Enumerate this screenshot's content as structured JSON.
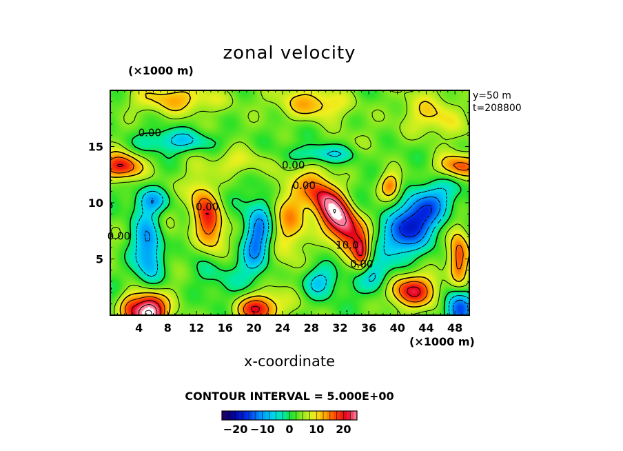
{
  "chart_data": {
    "type": "heatmap",
    "title": "zonal velocity",
    "xlabel": "x-coordinate",
    "x_unit": "(×1000 m)",
    "y_unit": "(×1000 m)",
    "xlim": [
      0,
      50
    ],
    "ylim": [
      0,
      20
    ],
    "x_ticks": [
      4,
      8,
      12,
      16,
      20,
      24,
      28,
      32,
      36,
      40,
      44,
      48
    ],
    "y_ticks": [
      5,
      10,
      15
    ],
    "annotations": [
      "y=50 m",
      "t=208800"
    ],
    "contour_interval_label": "CONTOUR INTERVAL = 5.000E+00",
    "contour_labels": [
      {
        "text": "0.00",
        "x": 5.5,
        "y": 16.2
      },
      {
        "text": "0.00",
        "x": 25.5,
        "y": 13.3
      },
      {
        "text": "0.00",
        "x": 27,
        "y": 11.5
      },
      {
        "text": "0.00",
        "x": 13.5,
        "y": 9.6
      },
      {
        "text": "0.00",
        "x": 1.2,
        "y": 7
      },
      {
        "text": "10.0",
        "x": 33,
        "y": 6.2
      },
      {
        "text": "0.00",
        "x": 35,
        "y": 4.5
      }
    ],
    "colorbar": {
      "min": -25,
      "max": 25,
      "ticks": [
        -20,
        -10,
        0,
        10,
        20
      ]
    },
    "features": [
      {
        "type": "max",
        "x": 31.5,
        "y": 9.0,
        "amp": 26,
        "sx": 3.2,
        "sy": 1.3,
        "angle_deg": -38
      },
      {
        "type": "max",
        "x": 5.3,
        "y": 0.2,
        "amp": 30,
        "sx": 1.6,
        "sy": 1.2,
        "angle_deg": 0
      },
      {
        "type": "max",
        "x": 20.5,
        "y": 0.6,
        "amp": 18,
        "sx": 2.0,
        "sy": 0.9,
        "angle_deg": 0
      },
      {
        "type": "max",
        "x": 13.5,
        "y": 8.8,
        "amp": 16,
        "sx": 1.4,
        "sy": 2.4,
        "angle_deg": 25
      },
      {
        "type": "max",
        "x": 1.5,
        "y": 13.2,
        "amp": 18,
        "sx": 2.0,
        "sy": 0.8,
        "angle_deg": 0
      },
      {
        "type": "max",
        "x": 48.5,
        "y": 13.2,
        "amp": 15,
        "sx": 2.2,
        "sy": 0.8,
        "angle_deg": 0
      },
      {
        "type": "max",
        "x": 42,
        "y": 2.2,
        "amp": 16,
        "sx": 2.4,
        "sy": 1.0,
        "angle_deg": 0
      },
      {
        "type": "max",
        "x": 48.5,
        "y": 5,
        "amp": 15,
        "sx": 1.0,
        "sy": 1.8,
        "angle_deg": 0
      },
      {
        "type": "max",
        "x": 39,
        "y": 11.5,
        "amp": 12,
        "sx": 1.0,
        "sy": 0.8,
        "angle_deg": 0
      },
      {
        "type": "max",
        "x": 35,
        "y": 5.5,
        "amp": 11,
        "sx": 0.7,
        "sy": 1.0,
        "angle_deg": 0
      },
      {
        "type": "max",
        "x": 25,
        "y": 8,
        "amp": 10,
        "sx": 2.0,
        "sy": 2.5,
        "angle_deg": 0
      },
      {
        "type": "max",
        "x": 2.5,
        "y": 0.8,
        "amp": 8,
        "sx": 1.0,
        "sy": 0.9,
        "angle_deg": 0
      },
      {
        "type": "max",
        "x": 7.5,
        "y": 6.5,
        "amp": 6,
        "sx": 1.4,
        "sy": 2.0,
        "angle_deg": 0
      },
      {
        "type": "min",
        "x": 42.5,
        "y": 8.5,
        "amp": -22,
        "sx": 3.6,
        "sy": 1.5,
        "angle_deg": 30
      },
      {
        "type": "min",
        "x": 20.5,
        "y": 7,
        "amp": -16,
        "sx": 1.4,
        "sy": 2.4,
        "angle_deg": -15
      },
      {
        "type": "min",
        "x": 5.5,
        "y": 6,
        "amp": -15,
        "sx": 1.6,
        "sy": 2.5,
        "angle_deg": 0
      },
      {
        "type": "min",
        "x": 48.5,
        "y": 0.5,
        "amp": -18,
        "sx": 1.3,
        "sy": 1.3,
        "angle_deg": 0
      },
      {
        "type": "min",
        "x": 6,
        "y": 10.2,
        "amp": -10,
        "sx": 1.8,
        "sy": 0.8,
        "angle_deg": 0
      },
      {
        "type": "min",
        "x": 29,
        "y": 3,
        "amp": -10,
        "sx": 1.8,
        "sy": 1.0,
        "angle_deg": 0
      },
      {
        "type": "min",
        "x": 30,
        "y": 14.3,
        "amp": -9,
        "sx": 3.0,
        "sy": 0.6,
        "angle_deg": 0
      },
      {
        "type": "min",
        "x": 10,
        "y": 15.5,
        "amp": -8,
        "sx": 4.0,
        "sy": 0.7,
        "angle_deg": 0
      },
      {
        "type": "min",
        "x": 37,
        "y": 3.5,
        "amp": -9,
        "sx": 1.5,
        "sy": 1.0,
        "angle_deg": 0
      },
      {
        "type": "max",
        "x": 10,
        "y": 19.2,
        "amp": 8,
        "sx": 5.0,
        "sy": 0.9,
        "angle_deg": 0
      },
      {
        "type": "max",
        "x": 29,
        "y": 18.8,
        "amp": 9,
        "sx": 3.5,
        "sy": 1.0,
        "angle_deg": 0
      },
      {
        "type": "max",
        "x": 45,
        "y": 17.5,
        "amp": 7,
        "sx": 3.0,
        "sy": 1.4,
        "angle_deg": 0
      },
      {
        "type": "max",
        "x": 18,
        "y": 13.5,
        "amp": 5,
        "sx": 3.0,
        "sy": 0.8,
        "angle_deg": 0
      },
      {
        "type": "min",
        "x": 15,
        "y": 4.2,
        "amp": -5,
        "sx": 2.5,
        "sy": 1.4,
        "angle_deg": 0
      }
    ]
  }
}
